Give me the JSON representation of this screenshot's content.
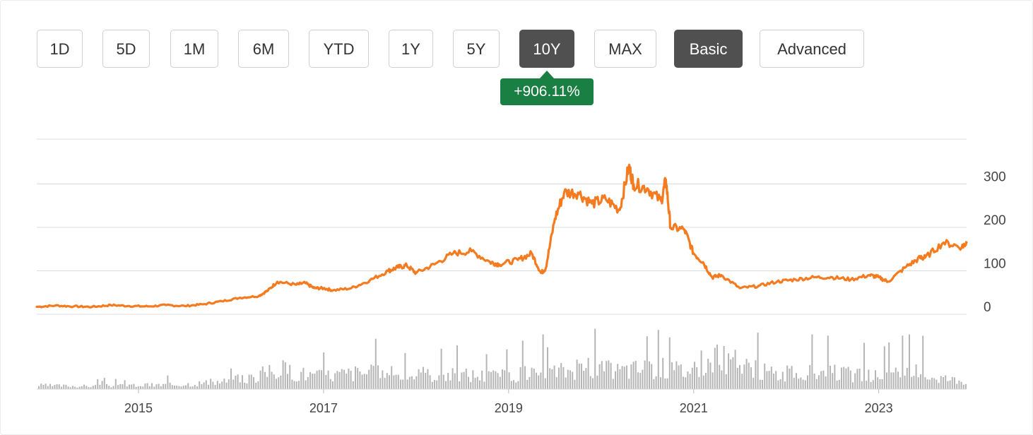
{
  "ranges": [
    {
      "label": "1D",
      "active": false
    },
    {
      "label": "5D",
      "active": false
    },
    {
      "label": "1M",
      "active": false
    },
    {
      "label": "6M",
      "active": false
    },
    {
      "label": "YTD",
      "active": false
    },
    {
      "label": "1Y",
      "active": false
    },
    {
      "label": "5Y",
      "active": false
    },
    {
      "label": "10Y",
      "active": true
    },
    {
      "label": "MAX",
      "active": false
    }
  ],
  "modes": [
    {
      "label": "Basic",
      "active": true
    },
    {
      "label": "Advanced",
      "active": false
    }
  ],
  "change_badge": "+906.11%",
  "colors": {
    "price_line": "#f47b20",
    "volume_bars": "#b5b5b5",
    "badge": "#1a7f42",
    "active_button": "#505050"
  },
  "chart_data": [
    {
      "type": "line",
      "title": "",
      "series": [
        {
          "x": [
            2014.0,
            2014.2,
            2014.4,
            2014.6,
            2014.8,
            2015.0,
            2015.2,
            2015.4,
            2015.6,
            2015.8,
            2016.0,
            2016.2,
            2016.4,
            2016.5,
            2016.6,
            2016.8,
            2016.9,
            2017.0,
            2017.1,
            2017.2,
            2017.4,
            2017.6,
            2017.8,
            2017.9,
            2018.0,
            2018.1,
            2018.3,
            2018.5,
            2018.7,
            2018.9,
            2019.0,
            2019.2,
            2019.35,
            2019.45,
            2019.5,
            2019.6,
            2019.7,
            2019.85,
            2020.0,
            2020.15,
            2020.3,
            2020.4,
            2020.45,
            2020.6,
            2020.75,
            2020.8,
            2020.85,
            2021.0,
            2021.1,
            2021.2,
            2021.3,
            2021.4,
            2021.6,
            2021.8,
            2022.0,
            2022.2,
            2022.4,
            2022.6,
            2022.8,
            2023.0,
            2023.1,
            2023.2,
            2023.4,
            2023.55,
            2023.6,
            2023.8,
            2024.0,
            2024.05
          ],
          "y": [
            17,
            20,
            18,
            17,
            21,
            19,
            18,
            21,
            19,
            23,
            30,
            38,
            42,
            55,
            75,
            68,
            72,
            60,
            60,
            55,
            60,
            78,
            100,
            108,
            112,
            95,
            115,
            140,
            145,
            120,
            115,
            125,
            140,
            95,
            105,
            220,
            280,
            280,
            255,
            265,
            240,
            340,
            300,
            290,
            260,
            310,
            200,
            195,
            140,
            120,
            85,
            90,
            60,
            65,
            75,
            80,
            85,
            85,
            80,
            90,
            85,
            75,
            110,
            130,
            130,
            165,
            155,
            165
          ]
        }
      ],
      "xlabel": "",
      "ylabel": "",
      "y_ticks": [
        0,
        100,
        200,
        300
      ],
      "x_ticks": [
        "2015",
        "2017",
        "2019",
        "2021",
        "2023"
      ],
      "ylim": [
        0,
        400
      ],
      "xlim": [
        2014.0,
        2024.05
      ],
      "grid": true,
      "y_axis_side": "right"
    },
    {
      "type": "bar",
      "title": "",
      "x": [
        2014.0,
        2014.5,
        2015.0,
        2015.5,
        2016.0,
        2016.3,
        2016.6,
        2017.0,
        2017.5,
        2018.0,
        2018.5,
        2019.0,
        2019.5,
        2019.9,
        2020.3,
        2020.7,
        2021.0,
        2021.2,
        2021.4,
        2021.7,
        2022.0,
        2022.5,
        2023.0,
        2023.5,
        2023.9
      ],
      "values": [
        0.1,
        0.08,
        0.1,
        0.12,
        0.2,
        0.3,
        0.55,
        0.35,
        0.45,
        0.38,
        0.4,
        0.35,
        0.45,
        0.55,
        0.5,
        0.6,
        0.5,
        0.7,
        0.85,
        0.55,
        0.4,
        0.45,
        0.35,
        0.45,
        0.25
      ],
      "ylim": [
        0,
        1
      ]
    }
  ]
}
